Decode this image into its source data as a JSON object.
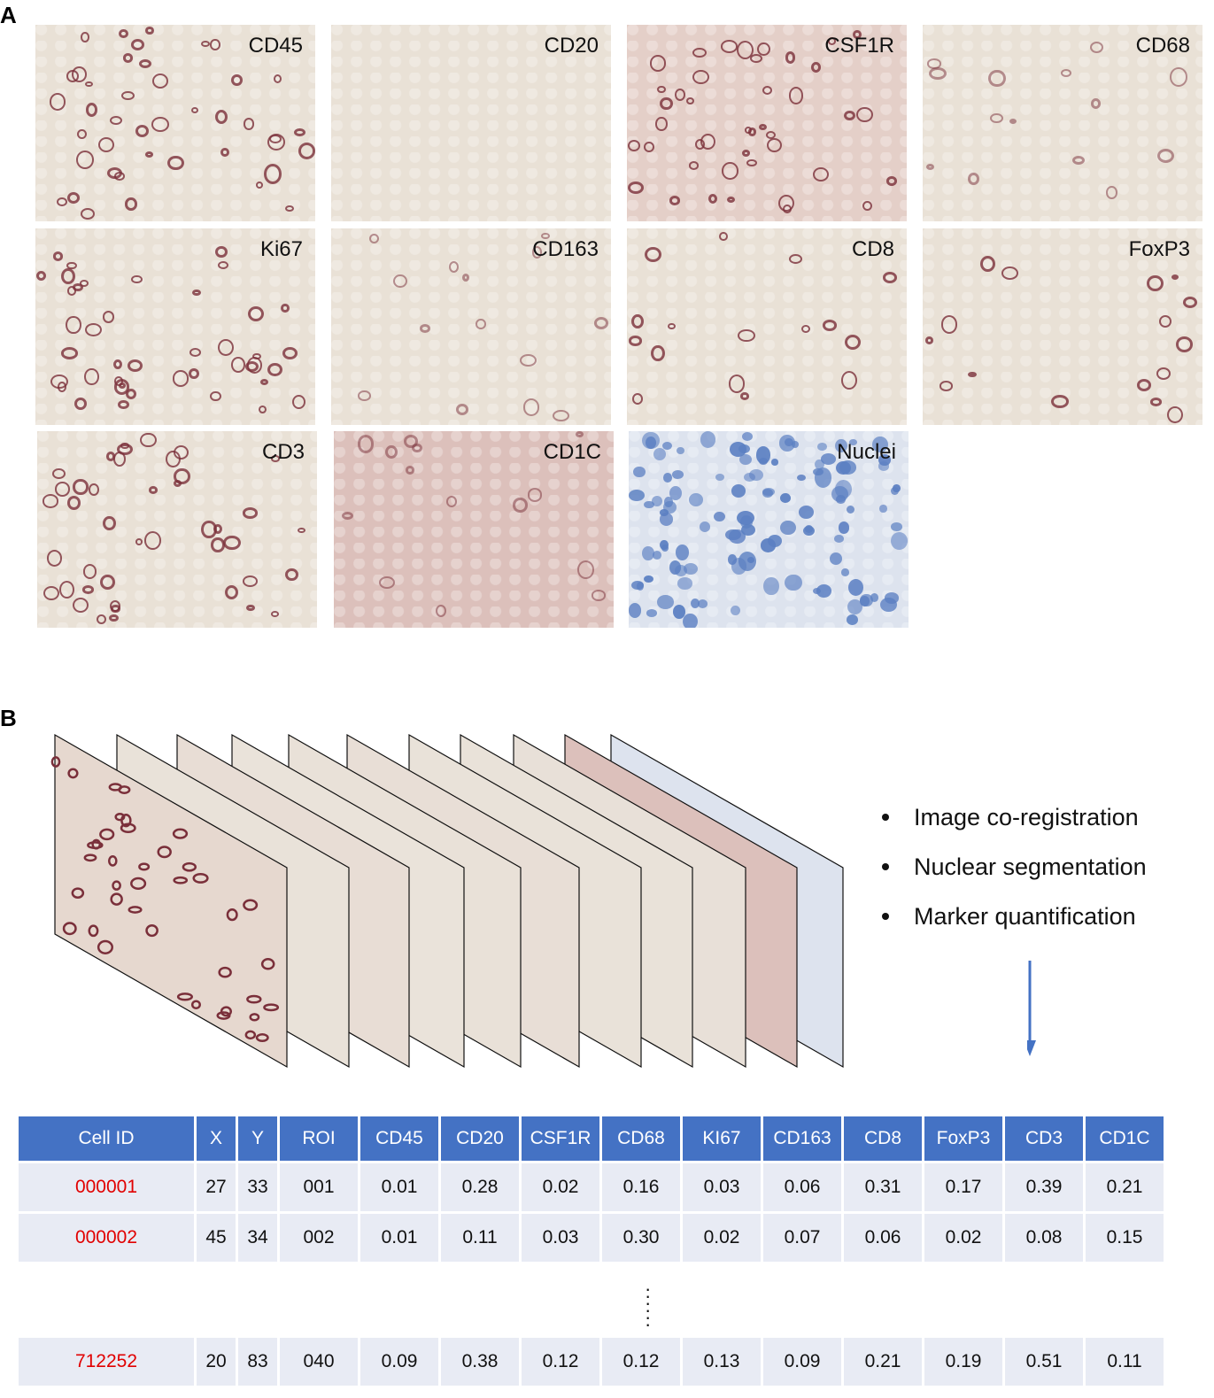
{
  "panel_a": {
    "letter": "A",
    "tiles": [
      {
        "label": "CD45",
        "stain": "brown",
        "density": "high"
      },
      {
        "label": "CD20",
        "stain": "brown",
        "density": "none"
      },
      {
        "label": "CSF1R",
        "stain": "brown",
        "density": "high"
      },
      {
        "label": "CD68",
        "stain": "brown",
        "density": "low"
      },
      {
        "label": "Ki67",
        "stain": "brown",
        "density": "high"
      },
      {
        "label": "CD163",
        "stain": "brown",
        "density": "low"
      },
      {
        "label": "CD8",
        "stain": "brown",
        "density": "medium"
      },
      {
        "label": "FoxP3",
        "stain": "brown",
        "density": "medium"
      },
      {
        "label": "CD3",
        "stain": "brown",
        "density": "high"
      },
      {
        "label": "CD1C",
        "stain": "brown",
        "density": "low"
      },
      {
        "label": "Nuclei",
        "stain": "blue",
        "density": "very-high"
      }
    ]
  },
  "panel_b": {
    "letter": "B",
    "stack_layers": 11,
    "bullets": [
      "Image co-registration",
      "Nuclear segmentation",
      "Marker quantification"
    ],
    "table": {
      "columns": [
        "Cell ID",
        "X",
        "Y",
        "ROI",
        "CD45",
        "CD20",
        "CSF1R",
        "CD68",
        "KI67",
        "CD163",
        "CD8",
        "FoxP3",
        "CD3",
        "CD1C"
      ],
      "rows": [
        [
          "000001",
          "27",
          "33",
          "001",
          "0.01",
          "0.28",
          "0.02",
          "0.16",
          "0.03",
          "0.06",
          "0.31",
          "0.17",
          "0.39",
          "0.21"
        ],
        [
          "000002",
          "45",
          "34",
          "002",
          "0.01",
          "0.11",
          "0.03",
          "0.30",
          "0.02",
          "0.07",
          "0.06",
          "0.02",
          "0.08",
          "0.15"
        ]
      ],
      "ellipsis": "⋮",
      "last_row": [
        "712252",
        "20",
        "83",
        "040",
        "0.09",
        "0.38",
        "0.12",
        "0.12",
        "0.13",
        "0.09",
        "0.21",
        "0.19",
        "0.51",
        "0.11"
      ]
    }
  },
  "colors": {
    "header_blue": "#4472c4",
    "row_bg": "#e8ebf4",
    "cell_id_red": "#e10000",
    "tissue_bg": "#e9e1d6",
    "brown_stain": "#7a2f3a",
    "nuclei_blue": "#5b7fc2"
  }
}
